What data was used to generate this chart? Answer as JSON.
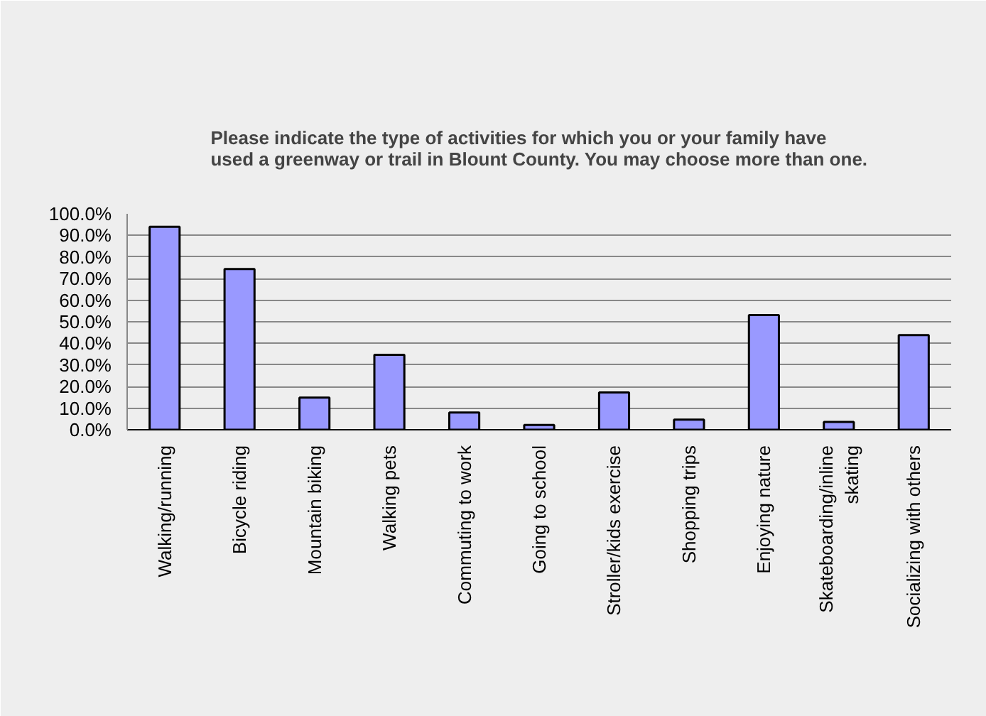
{
  "chart_data": {
    "type": "bar",
    "title": "Please indicate the type of activities for which you or your family have used a greenway or trail in Blount County. You may choose more than one.",
    "categories": [
      "Walking/running",
      "Bicycle riding",
      "Mountain biking",
      "Walking pets",
      "Commuting to work",
      "Going to school",
      "Stroller/kids exercise",
      "Shopping trips",
      "Enjoying nature",
      "Skateboarding/inline skating",
      "Socializing with others"
    ],
    "values": [
      94.0,
      74.4,
      14.9,
      34.7,
      8.0,
      2.2,
      17.3,
      4.7,
      53.1,
      3.6,
      43.8
    ],
    "color": "#9999ff",
    "ylim": [
      0,
      100
    ],
    "yticks": [
      {
        "value": 0,
        "label": "0.0%"
      },
      {
        "value": 10,
        "label": "10.0%"
      },
      {
        "value": 20,
        "label": "20.0%"
      },
      {
        "value": 30,
        "label": "30.0%"
      },
      {
        "value": 40,
        "label": "40.0%"
      },
      {
        "value": 50,
        "label": "50.0%"
      },
      {
        "value": 60,
        "label": "60.0%"
      },
      {
        "value": 70,
        "label": "70.0%"
      },
      {
        "value": 80,
        "label": "80.0%"
      },
      {
        "value": 90,
        "label": "90.0%"
      },
      {
        "value": 100,
        "label": "100.0%"
      }
    ],
    "grid": "y"
  }
}
